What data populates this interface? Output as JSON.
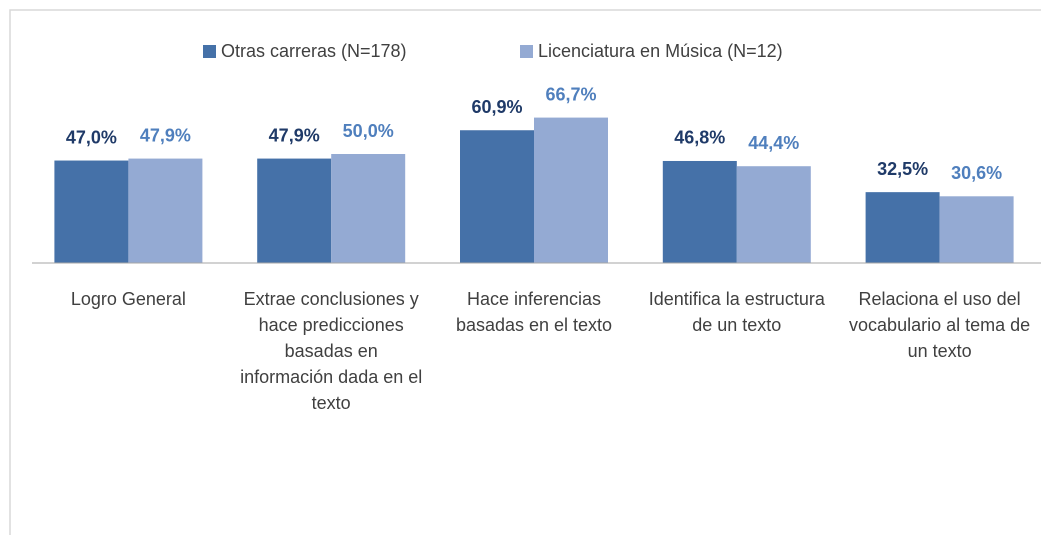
{
  "chart_data": {
    "type": "bar",
    "categories": [
      "Logro General",
      "Extrae conclusiones y hace predicciones basadas en información dada en el texto",
      "Hace inferencias basadas en el texto",
      "Identifica la estructura de un texto",
      "Relaciona el uso del vocabulario al tema de un texto"
    ],
    "series": [
      {
        "name": "Otras carreras (N=178)",
        "color": "#4571a8",
        "label_color": "#1f3a68",
        "values": [
          47.0,
          47.9,
          60.9,
          46.8,
          32.5
        ],
        "value_labels": [
          "47,0%",
          "47,9%",
          "60,9%",
          "46,8%",
          "32,5%"
        ]
      },
      {
        "name": "Licenciatura en Música (N=12)",
        "color": "#94aad3",
        "label_color": "#4f7fbd",
        "values": [
          47.9,
          50.0,
          66.7,
          44.4,
          30.6
        ],
        "value_labels": [
          "47,9%",
          "50,0%",
          "66,7%",
          "44,4%",
          "30,6%"
        ]
      }
    ],
    "ylim": [
      0,
      100
    ],
    "legend": "top"
  }
}
